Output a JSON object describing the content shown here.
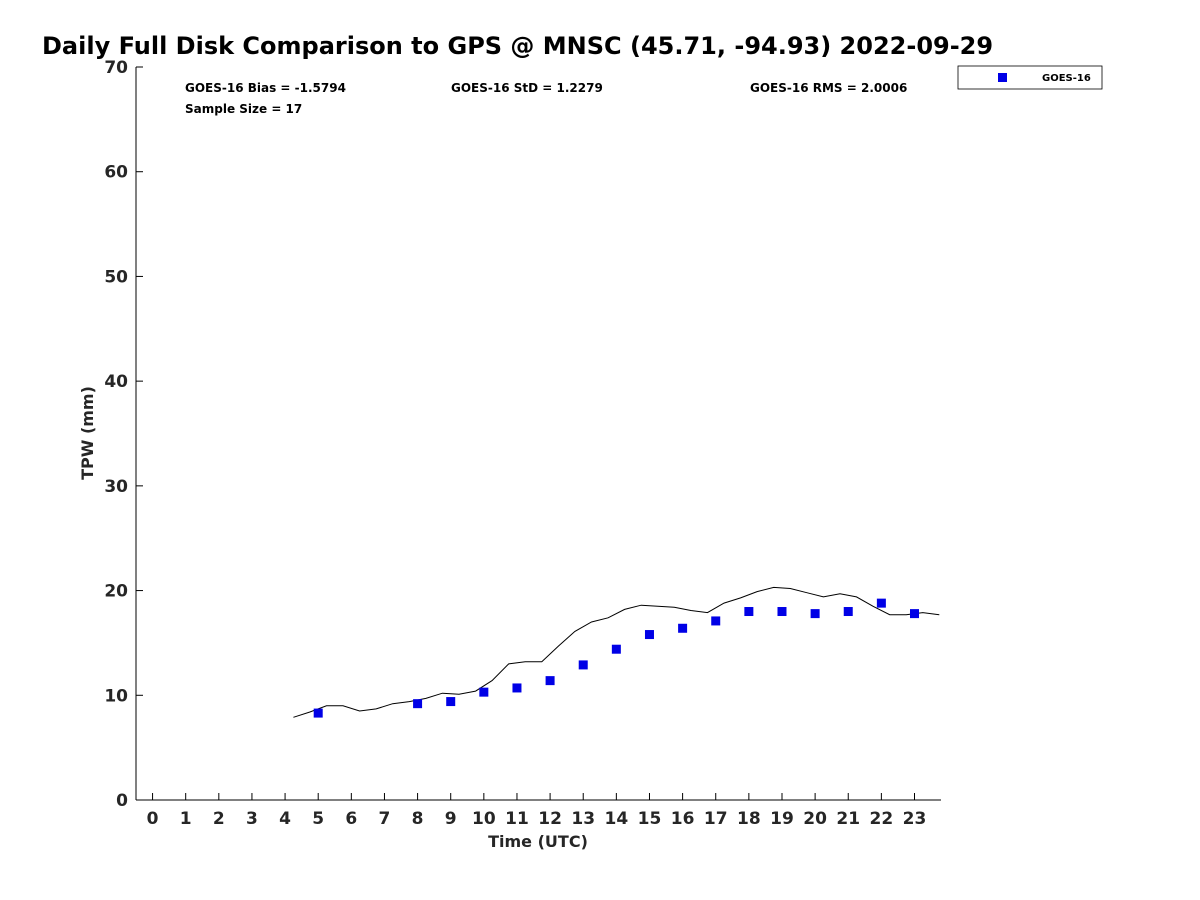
{
  "chart_data": {
    "type": "scatter",
    "title": "Daily Full Disk Comparison to GPS @ MNSC (45.71, -94.93) 2022-09-29",
    "xlabel": "Time (UTC)",
    "ylabel": "TPW (mm)",
    "xlim": [
      -0.5,
      23.8
    ],
    "ylim": [
      0,
      70
    ],
    "x_ticks": [
      0,
      1,
      2,
      3,
      4,
      5,
      6,
      7,
      8,
      9,
      10,
      11,
      12,
      13,
      14,
      15,
      16,
      17,
      18,
      19,
      20,
      21,
      22,
      23
    ],
    "y_ticks": [
      0,
      10,
      20,
      30,
      40,
      50,
      60,
      70
    ],
    "grid": false,
    "legend_position": "top-right",
    "stats": {
      "bias": "GOES-16 Bias = -1.5794",
      "std": "GOES-16 StD = 1.2279",
      "rms": "GOES-16 RMS = 2.0006",
      "sample": "Sample Size = 17"
    },
    "series": [
      {
        "name": "GOES-16",
        "kind": "markers",
        "marker": "square",
        "color": "#0000e6",
        "x": [
          5,
          8,
          9,
          10,
          11,
          12,
          13,
          14,
          15,
          16,
          17,
          18,
          19,
          20,
          21,
          22,
          23
        ],
        "y": [
          8.3,
          9.2,
          9.4,
          10.3,
          10.7,
          11.4,
          12.9,
          14.4,
          15.8,
          16.4,
          17.1,
          18.0,
          18.0,
          17.8,
          18.0,
          18.8,
          17.8
        ]
      },
      {
        "kind": "line",
        "color": "#000000",
        "x": [
          4.25,
          4.75,
          5.25,
          5.75,
          6.25,
          6.75,
          7.25,
          7.75,
          8.25,
          8.75,
          9.25,
          9.75,
          10.25,
          10.75,
          11.25,
          11.75,
          12.25,
          12.75,
          13.25,
          13.75,
          14.25,
          14.75,
          15.25,
          15.75,
          16.25,
          16.75,
          17.25,
          17.75,
          18.25,
          18.75,
          19.25,
          19.75,
          20.25,
          20.75,
          21.25,
          21.75,
          22.25,
          22.75,
          23.25,
          23.75
        ],
        "y": [
          7.9,
          8.4,
          9.0,
          9.0,
          8.5,
          8.7,
          9.2,
          9.4,
          9.7,
          10.2,
          10.1,
          10.4,
          11.4,
          13.0,
          13.2,
          13.2,
          14.7,
          16.1,
          17.0,
          17.4,
          18.2,
          18.6,
          18.5,
          18.4,
          18.1,
          17.9,
          18.8,
          19.3,
          19.9,
          20.3,
          20.2,
          19.8,
          19.4,
          19.7,
          19.4,
          18.5,
          17.7,
          17.7,
          17.9,
          17.7
        ]
      }
    ]
  }
}
